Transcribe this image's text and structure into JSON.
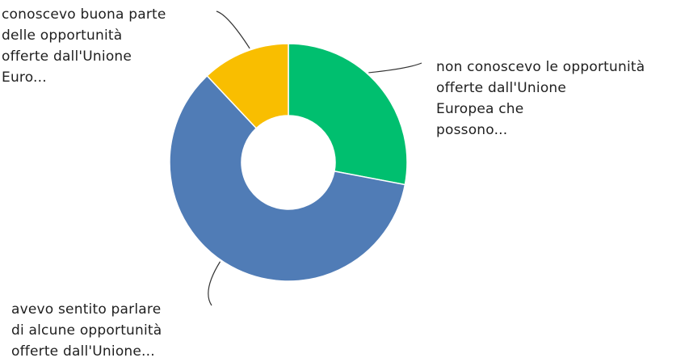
{
  "chart_data": {
    "type": "pie",
    "donut": true,
    "categories": [
      "non conoscevo le opportunità offerte dall'Unione Europea che possono...",
      "avevo sentito parlare di alcune opportunità offerte dall'Unione...",
      "conoscevo buona parte delle opportunità offerte dall'Unione Euro..."
    ],
    "values": [
      28,
      60,
      12
    ],
    "colors": [
      "#00bf6f",
      "#507cb6",
      "#f9be00"
    ],
    "legend": "none"
  },
  "labels": [
    {
      "text": "non conoscevo le opportunità\nofferte dall'Unione\nEuropea che\npossono..."
    },
    {
      "text": "avevo sentito parlare\ndi alcune opportunità\nofferte dall'Unione..."
    },
    {
      "text": "conoscevo buona parte\ndelle opportunità\nofferte dall'Unione\nEuro..."
    }
  ]
}
